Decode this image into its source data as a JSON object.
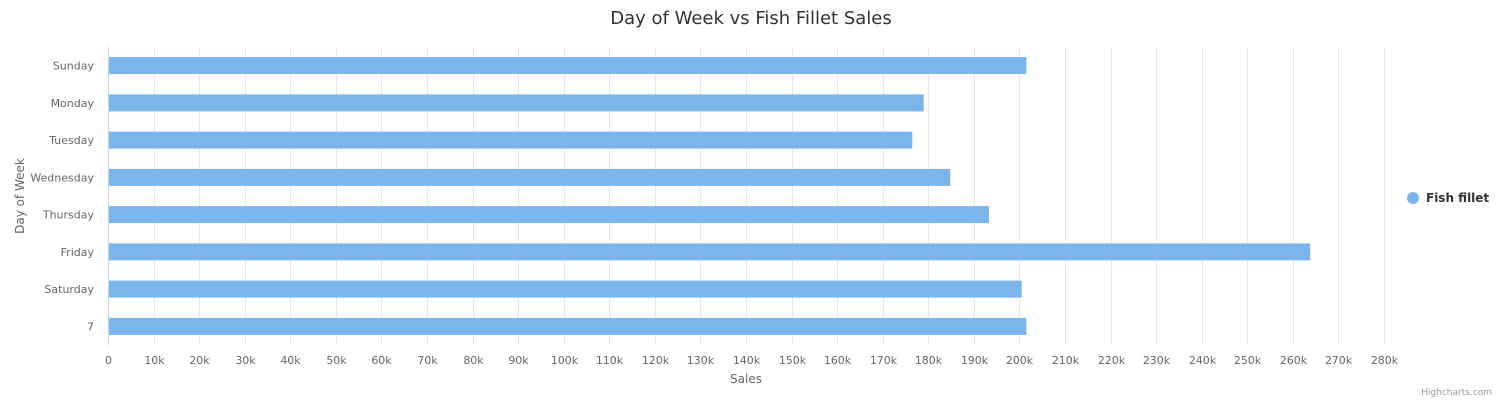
{
  "chart_data": {
    "type": "bar",
    "orientation": "horizontal",
    "title": "Day of Week vs Fish Fillet Sales",
    "xlabel": "Sales",
    "ylabel": "Day of Week",
    "categories": [
      "Sunday",
      "Monday",
      "Tuesday",
      "Wednesday",
      "Thursday",
      "Friday",
      "Saturday",
      "7"
    ],
    "series": [
      {
        "name": "Fish fillet",
        "color": "#7cb5ec",
        "values": [
          201500,
          179000,
          176500,
          184800,
          193300,
          263800,
          200500,
          201500
        ]
      }
    ],
    "xlim": [
      0,
      280000
    ],
    "tick_step": 10000,
    "tick_labels": [
      "0",
      "10k",
      "20k",
      "30k",
      "40k",
      "50k",
      "60k",
      "70k",
      "80k",
      "90k",
      "100k",
      "110k",
      "120k",
      "130k",
      "140k",
      "150k",
      "160k",
      "170k",
      "180k",
      "190k",
      "200k",
      "210k",
      "220k",
      "230k",
      "240k",
      "250k",
      "260k",
      "270k",
      "280k"
    ],
    "grid": true,
    "legend": "right"
  },
  "credits": "Highcharts.com"
}
